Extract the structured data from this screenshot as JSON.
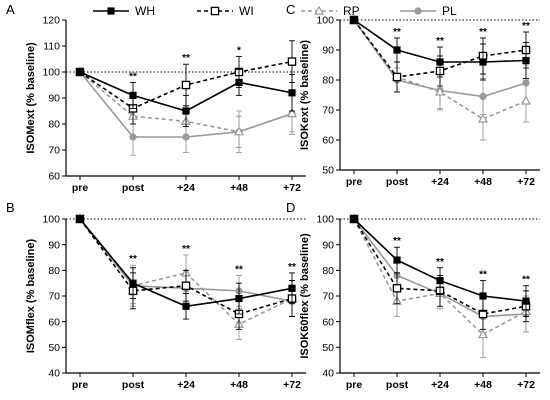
{
  "legend": [
    {
      "name": "WH",
      "color": "#000000",
      "marker": "square-filled",
      "dash": "solid"
    },
    {
      "name": "WI",
      "color": "#000000",
      "marker": "square-open",
      "dash": "dashed"
    },
    {
      "name": "RP",
      "color": "#999999",
      "marker": "triangle-open",
      "dash": "dashed"
    },
    {
      "name": "PL",
      "color": "#999999",
      "marker": "circle-filled",
      "dash": "solid"
    }
  ],
  "chart_data": [
    {
      "panel": "A",
      "type": "line",
      "ylabel": "ISOMext (% baseline)",
      "categories": [
        "pre",
        "post",
        "+24",
        "+48",
        "+72"
      ],
      "ylim": [
        60,
        120
      ],
      "yticks": [
        60,
        70,
        80,
        90,
        100,
        110,
        120
      ],
      "reference_line": 100,
      "significance": [
        "",
        "**",
        "**",
        "*",
        ""
      ],
      "series": [
        {
          "name": "WH",
          "values": [
            100,
            91,
            85,
            96,
            92
          ],
          "err": [
            0,
            5,
            6,
            5,
            7
          ]
        },
        {
          "name": "WI",
          "values": [
            100,
            86,
            95,
            100,
            104
          ],
          "err": [
            0,
            6,
            8,
            6,
            8
          ]
        },
        {
          "name": "RP",
          "values": [
            100,
            83,
            81,
            77,
            84
          ],
          "err": [
            0,
            8,
            6,
            8,
            7
          ]
        },
        {
          "name": "PL",
          "values": [
            100,
            75,
            75,
            77,
            84
          ],
          "err": [
            0,
            7,
            6,
            6,
            8
          ]
        }
      ]
    },
    {
      "panel": "C",
      "type": "line",
      "ylabel": "ISOKext (% baseline)",
      "categories": [
        "pre",
        "post",
        "+24",
        "+48",
        "+72"
      ],
      "ylim": [
        50,
        100
      ],
      "yticks": [
        50,
        60,
        70,
        80,
        90,
        100
      ],
      "reference_line": 100,
      "significance": [
        "",
        "**",
        "**",
        "**",
        "**"
      ],
      "series": [
        {
          "name": "WH",
          "values": [
            100,
            90,
            86,
            86,
            86.5
          ],
          "err": [
            0,
            4,
            5,
            6,
            6
          ]
        },
        {
          "name": "WI",
          "values": [
            100,
            81,
            83,
            88,
            90
          ],
          "err": [
            0,
            5,
            5,
            6,
            6
          ]
        },
        {
          "name": "RP",
          "values": [
            100,
            81,
            76,
            67,
            73
          ],
          "err": [
            0,
            5,
            6,
            7,
            7
          ]
        },
        {
          "name": "PL",
          "values": [
            100,
            80,
            76.5,
            74.5,
            79
          ],
          "err": [
            0,
            4,
            6,
            6,
            6
          ]
        }
      ]
    },
    {
      "panel": "B",
      "type": "line",
      "ylabel": "ISOMflex (% baseline)",
      "categories": [
        "pre",
        "post",
        "+24",
        "+48",
        "+72"
      ],
      "ylim": [
        40,
        100
      ],
      "yticks": [
        40,
        50,
        60,
        70,
        80,
        90,
        100
      ],
      "reference_line": 100,
      "significance": [
        "",
        "**",
        "**",
        "**",
        "**"
      ],
      "series": [
        {
          "name": "WH",
          "values": [
            100,
            75,
            66,
            69,
            73
          ],
          "err": [
            0,
            6,
            5,
            6,
            6
          ]
        },
        {
          "name": "WI",
          "values": [
            100,
            72,
            74,
            63,
            69
          ],
          "err": [
            0,
            7,
            6,
            6,
            7
          ]
        },
        {
          "name": "RP",
          "values": [
            100,
            74,
            79,
            59,
            69
          ],
          "err": [
            0,
            8,
            7,
            6,
            7
          ]
        },
        {
          "name": "PL",
          "values": [
            100,
            74,
            73,
            72,
            68
          ],
          "err": [
            0,
            7,
            6,
            6,
            6
          ]
        }
      ]
    },
    {
      "panel": "D",
      "type": "line",
      "ylabel": "ISOK60flex (% baseline)",
      "categories": [
        "pre",
        "post",
        "+24",
        "+48",
        "+72"
      ],
      "ylim": [
        40,
        100
      ],
      "yticks": [
        40,
        50,
        60,
        70,
        80,
        90,
        100
      ],
      "reference_line": 100,
      "significance": [
        "",
        "**",
        "**",
        "**",
        "**"
      ],
      "series": [
        {
          "name": "WH",
          "values": [
            100,
            84,
            76,
            70,
            68
          ],
          "err": [
            0,
            5,
            5,
            6,
            6
          ]
        },
        {
          "name": "WI",
          "values": [
            100,
            73,
            72,
            63,
            66
          ],
          "err": [
            0,
            6,
            6,
            6,
            6
          ]
        },
        {
          "name": "RP",
          "values": [
            100,
            68,
            71,
            55,
            64
          ],
          "err": [
            0,
            6,
            6,
            9,
            8
          ]
        },
        {
          "name": "PL",
          "values": [
            100,
            78,
            71,
            62,
            63
          ],
          "err": [
            0,
            6,
            6,
            7,
            7
          ]
        }
      ]
    }
  ]
}
